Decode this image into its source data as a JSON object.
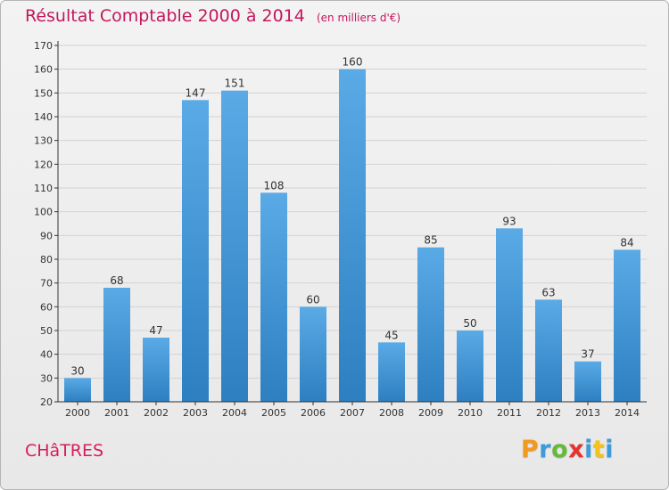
{
  "title": "Résultat Comptable 2000 à 2014",
  "subtitle": "(en milliers d'€)",
  "commune": "CHâTRES",
  "brand": {
    "letters": [
      "P",
      "r",
      "o",
      "x",
      "i",
      "t",
      "i"
    ],
    "colors": [
      "#f29a1f",
      "#3c9bd8",
      "#67b93a",
      "#e8312f",
      "#3c9bd8",
      "#f2c41a",
      "#3c9bd8"
    ]
  },
  "colors": {
    "title": "#c2185b",
    "bar_top": "#5aaae6",
    "bar_bottom": "#2d7fc0",
    "axis": "#333333",
    "grid": "#d2d2d2"
  },
  "chart_data": {
    "type": "bar",
    "categories": [
      "2000",
      "2001",
      "2002",
      "2003",
      "2004",
      "2005",
      "2006",
      "2007",
      "2008",
      "2009",
      "2010",
      "2011",
      "2012",
      "2013",
      "2014"
    ],
    "values": [
      30,
      68,
      47,
      147,
      151,
      108,
      60,
      160,
      45,
      85,
      50,
      93,
      63,
      37,
      84
    ],
    "ylim": [
      20,
      170
    ],
    "yticks": [
      20,
      30,
      40,
      50,
      60,
      70,
      80,
      90,
      100,
      110,
      120,
      130,
      140,
      150,
      160,
      170
    ],
    "grid": true,
    "data_labels": true
  }
}
